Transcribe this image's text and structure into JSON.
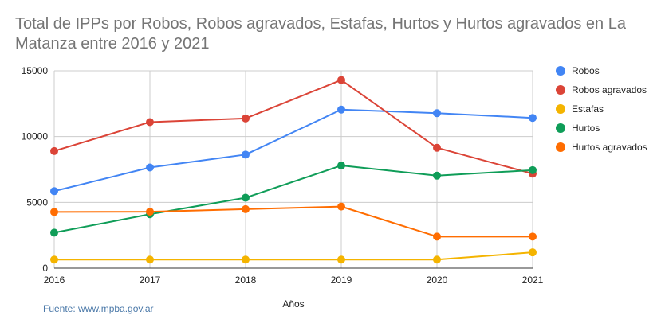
{
  "chart_data": {
    "type": "line",
    "title": "Total de IPPs por Robos, Robos agravados, Estafas, Hurtos y Hurtos agravados en La Matanza entre 2016 y 2021",
    "xlabel": "Años",
    "ylabel": "",
    "x": [
      "2016",
      "2017",
      "2018",
      "2019",
      "2020",
      "2021"
    ],
    "ylim": [
      0,
      15000
    ],
    "yticks": [
      "0",
      "5000",
      "10000",
      "15000"
    ],
    "grid": true,
    "legend_position": "right",
    "series": [
      {
        "name": "Robos",
        "color": "#4285f4",
        "values": [
          5850,
          7650,
          8630,
          12050,
          11780,
          11420
        ]
      },
      {
        "name": "Robos agravados",
        "color": "#db4437",
        "values": [
          8900,
          11100,
          11380,
          14300,
          9150,
          7180
        ]
      },
      {
        "name": "Estafas",
        "color": "#f4b400",
        "values": [
          650,
          650,
          650,
          650,
          650,
          1200
        ]
      },
      {
        "name": "Hurtos",
        "color": "#0f9d58",
        "values": [
          2700,
          4100,
          5350,
          7800,
          7030,
          7450
        ]
      },
      {
        "name": "Hurtos agravados",
        "color": "#ff6d01",
        "values": [
          4270,
          4290,
          4480,
          4680,
          2400,
          2400
        ]
      }
    ]
  },
  "source_note": "Fuente: www.mpba.gov.ar"
}
